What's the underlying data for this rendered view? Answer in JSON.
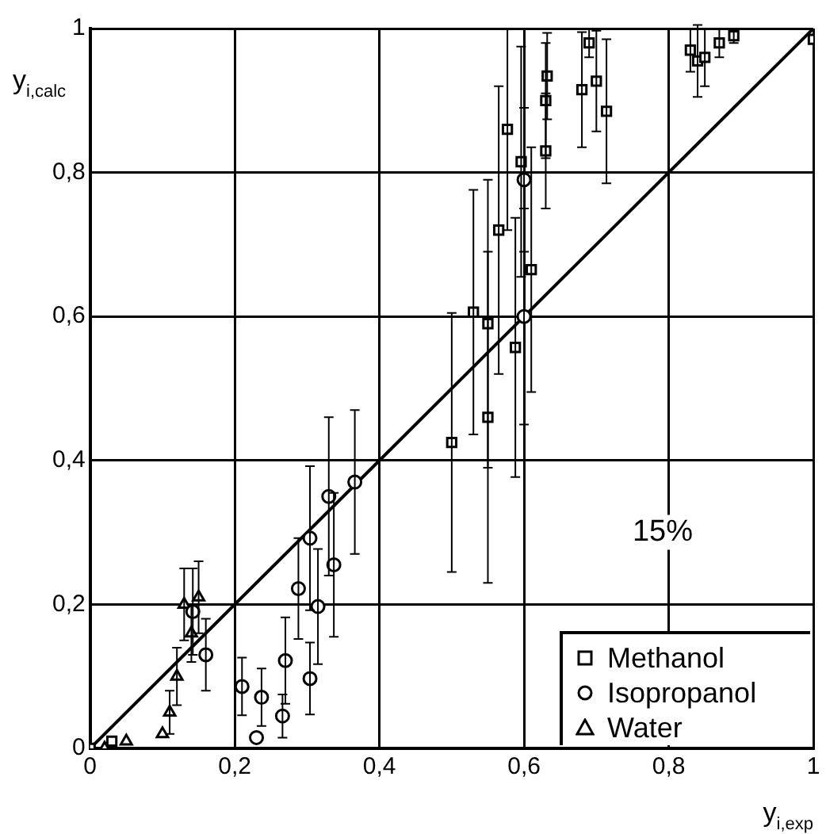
{
  "chart_data": {
    "type": "scatter",
    "xlabel": "y$_{i,exp}$",
    "ylabel": "y$_{i,calc}$",
    "xlim": [
      0,
      1
    ],
    "ylim": [
      0,
      1
    ],
    "xticks": [
      0,
      {
        "value": 0.2,
        "label": "0,2"
      },
      {
        "value": 0.4,
        "label": "0,4"
      },
      {
        "value": 0.6,
        "label": "0,6"
      },
      {
        "value": 0.8,
        "label": "0,8"
      },
      1
    ],
    "yticks": [
      0,
      {
        "value": 0.2,
        "label": "0,2"
      },
      {
        "value": 0.4,
        "label": "0,4"
      },
      {
        "value": 0.6,
        "label": "0,6"
      },
      {
        "value": 0.8,
        "label": "0,8"
      },
      1
    ],
    "grid": true,
    "legend": "bottom right",
    "annotations": [
      "15%"
    ],
    "series": [
      {
        "name": "Methanol",
        "color": "#000000",
        "marker": "square",
        "x": [
          0.0,
          0.03,
          0.5,
          0.53,
          0.55,
          0.55,
          0.565,
          0.577,
          0.588,
          0.596,
          0.61,
          0.63,
          0.632,
          0.63,
          0.69,
          0.7,
          0.714,
          0.68,
          0.83,
          0.84,
          0.85,
          0.87,
          0.89,
          1.0
        ],
        "values": [
          0.0,
          0.01,
          0.425,
          0.606,
          0.46,
          0.59,
          0.72,
          0.86,
          0.557,
          0.815,
          0.665,
          0.83,
          0.934,
          0.9,
          0.98,
          0.927,
          0.885,
          0.915,
          0.97,
          0.955,
          0.96,
          0.98,
          0.99,
          0.985
        ],
        "errors": [
          null,
          null,
          0.18,
          0.17,
          0.23,
          0.2,
          0.2,
          0.14,
          0.18,
          0.16,
          0.17,
          0.08,
          0.06,
          0.08,
          0.02,
          0.07,
          0.1,
          0.08,
          0.03,
          0.05,
          0.04,
          0.02,
          0.01,
          null
        ]
      },
      {
        "name": "Isopropanol",
        "color": "#000000",
        "marker": "circle",
        "x": [
          0.366,
          0.33,
          0.304,
          0.337,
          0.315,
          0.288,
          0.27,
          0.304,
          0.266,
          0.21,
          0.237,
          0.23,
          0.16,
          0.142,
          0.6,
          0.6
        ],
        "values": [
          0.37,
          0.35,
          0.292,
          0.255,
          0.197,
          0.222,
          0.122,
          0.097,
          0.045,
          0.086,
          0.071,
          0.015,
          0.13,
          0.19,
          0.6,
          0.79
        ],
        "errors": [
          0.1,
          0.11,
          0.1,
          0.1,
          0.08,
          0.07,
          0.06,
          0.05,
          0.03,
          0.04,
          0.04,
          null,
          0.05,
          0.06,
          0.15,
          0.1
        ]
      },
      {
        "name": "Water",
        "color": "#000000",
        "marker": "triangle",
        "x": [
          0.02,
          0.05,
          0.1,
          0.11,
          0.12,
          0.13,
          0.14,
          0.15
        ],
        "values": [
          0.0,
          0.01,
          0.02,
          0.05,
          0.1,
          0.2,
          0.16,
          0.21
        ],
        "errors": [
          null,
          null,
          null,
          0.03,
          0.04,
          0.05,
          0.04,
          0.05
        ]
      },
      {
        "type": "line",
        "color": "#000000",
        "marker": "none",
        "line_style": "solid",
        "x": [
          0,
          1
        ],
        "values": [
          0,
          1
        ]
      }
    ]
  }
}
